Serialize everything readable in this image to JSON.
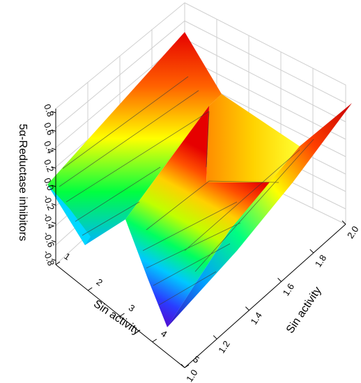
{
  "chart_data": {
    "type": "surface3d",
    "title": "",
    "z_axis": {
      "label": "5α-Reductase inhibitors",
      "range": [
        -0.8,
        0.8
      ],
      "ticks": [
        "-0.8",
        "-0.6",
        "-0.4",
        "-0.2",
        "0.0",
        "0.2",
        "0.4",
        "0.6",
        "0.8"
      ]
    },
    "x_axis": {
      "label": "Sin activity",
      "range": [
        1,
        5
      ],
      "ticks": [
        "1",
        "2",
        "3",
        "4",
        "5"
      ]
    },
    "y_axis": {
      "label": "Sin activity",
      "range": [
        1.0,
        2.0
      ],
      "ticks": [
        "1.0",
        "1.2",
        "1.4",
        "1.6",
        "1.8",
        "2.0"
      ]
    },
    "colormap": [
      "#5b00c8",
      "#2a3cff",
      "#00b4ff",
      "#00ffc8",
      "#00ff40",
      "#a0ff00",
      "#ffff00",
      "#ffb400",
      "#ff5000",
      "#e60000"
    ],
    "grid": true,
    "note_shape": "two folded ridges; central groove dipping to minimum near x=4, y=1.0"
  }
}
